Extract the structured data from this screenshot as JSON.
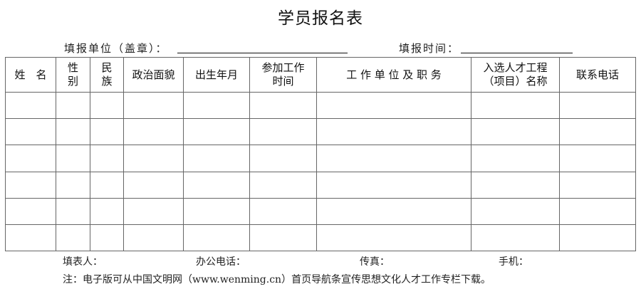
{
  "title": "学员报名表",
  "fill_unit_label": "填报单位（盖章）：",
  "fill_time_label": "填报时间：",
  "headers": [
    "姓　名",
    "性\n别",
    "民\n族",
    "政治面貌",
    "出生年月",
    "参加工作\n时间",
    "工 作 单 位 及 职 务",
    "入选人才工程\n（项目）名称",
    "联系电话"
  ],
  "row_count": 6,
  "footer": {
    "filler": "填表人：",
    "office_phone": "办公电话：",
    "fax": "传真：",
    "mobile": "手机："
  },
  "note": "注：电子版可从中国文明网（www.wenming.cn）首页导航条宣传思想文化人才工作专栏下载。"
}
